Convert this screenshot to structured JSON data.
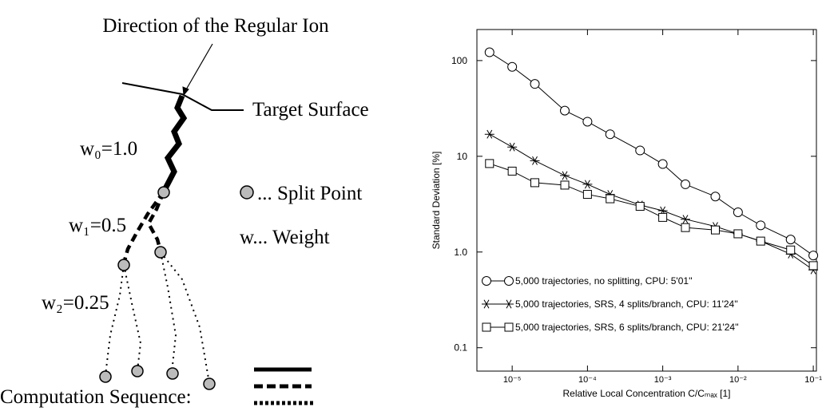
{
  "diagram": {
    "ion_label": "Direction of the Regular Ion",
    "surface_label": "Target Surface",
    "weights": [
      "w₀=1.0",
      "w₁=0.5",
      "w₂=0.25"
    ],
    "split_point_label": "... Split Point",
    "weight_label": "w... Weight",
    "sequence_label": "Computation Sequence:"
  },
  "chart_data": {
    "type": "line",
    "xlabel": "Relative Local Concentration C/Cₘₐₓ [1]",
    "ylabel": "Standard Deviation [%]",
    "x": [
      5e-06,
      1e-05,
      2e-05,
      5e-05,
      0.0001,
      0.0002,
      0.0005,
      0.001,
      0.002,
      0.005,
      0.01,
      0.02,
      0.05,
      0.1
    ],
    "series": [
      {
        "name": "5,000 trajectories, no splitting, CPU: 5'01''",
        "color": "#000000",
        "marker": "circle",
        "values": [
          122,
          86,
          57,
          30,
          23,
          17,
          11.5,
          8.3,
          5.1,
          3.8,
          2.6,
          1.9,
          1.35,
          0.92
        ]
      },
      {
        "name": "5,000 trajectories, SRS, 4 splits/branch, CPU: 11'24''",
        "color": "#000000",
        "marker": "star",
        "values": [
          17,
          12.5,
          9,
          6.3,
          5.1,
          4.0,
          3.1,
          2.7,
          2.2,
          1.85,
          1.55,
          1.3,
          0.95,
          0.65
        ]
      },
      {
        "name": "5,000 trajectories, SRS, 6 splits/branch, CPU: 21'24''",
        "color": "#000000",
        "marker": "square",
        "values": [
          8.4,
          7.0,
          5.3,
          5.0,
          4.0,
          3.6,
          3.0,
          2.3,
          1.8,
          1.7,
          1.55,
          1.3,
          1.05,
          0.72
        ]
      }
    ],
    "xscale": "log",
    "yscale": "log",
    "xlim": [
      3.4e-06,
      0.11
    ],
    "ylim": [
      0.057,
      211
    ],
    "xticks": [
      {
        "value": 1e-05,
        "label": "10⁻⁵"
      },
      {
        "value": 0.0001,
        "label": "10⁻⁴"
      },
      {
        "value": 0.001,
        "label": "10⁻³"
      },
      {
        "value": 0.01,
        "label": "10⁻²"
      },
      {
        "value": 0.1,
        "label": "10⁻¹"
      }
    ],
    "yticks": [
      0.1,
      {
        "value": 1,
        "label": "1.0"
      },
      10,
      100
    ],
    "grid": false,
    "legend": "lower left"
  }
}
